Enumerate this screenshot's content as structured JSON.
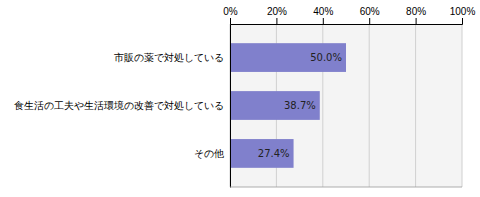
{
  "chart_data": {
    "type": "bar",
    "orientation": "horizontal",
    "categories": [
      "市販の薬で対処している",
      "食生活の工夫や生活環境の改善で対処している",
      "その他"
    ],
    "values": [
      50.0,
      38.7,
      27.4
    ],
    "value_labels": [
      "50.0%",
      "38.7%",
      "27.4%"
    ],
    "data_labels": true,
    "color": "#8080CC",
    "xlim": [
      0,
      100
    ],
    "xticks": [
      {
        "value": 0,
        "label": "0%"
      },
      {
        "value": 20,
        "label": "20%"
      },
      {
        "value": 40,
        "label": "40%"
      },
      {
        "value": 60,
        "label": "60%"
      },
      {
        "value": 80,
        "label": "80%"
      },
      {
        "value": 100,
        "label": "100%"
      }
    ],
    "grid": true
  }
}
